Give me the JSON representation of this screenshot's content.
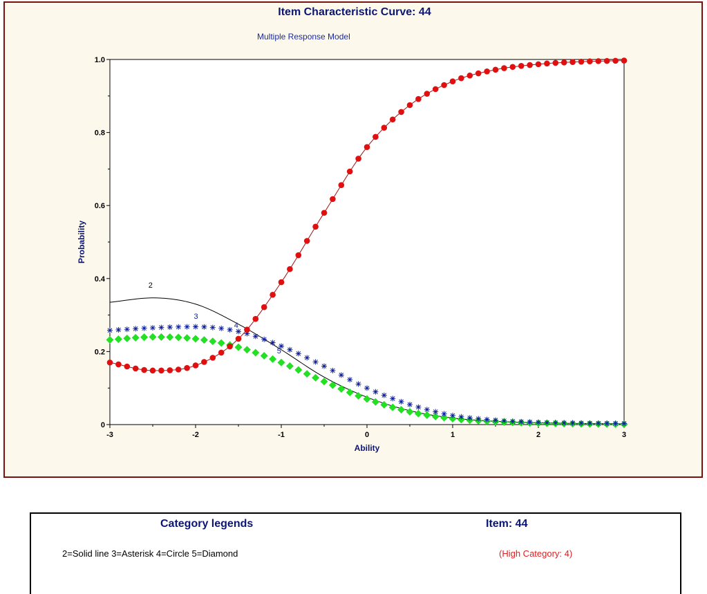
{
  "chart_data": {
    "type": "line",
    "title": "Item Characteristic Curve: 44",
    "subtitle": "Multiple Response Model",
    "xlabel": "Ability",
    "ylabel": "Probability",
    "xlim": [
      -3,
      3
    ],
    "ylim": [
      0,
      1
    ],
    "xticks": [
      "-3",
      "-2",
      "-1",
      "0",
      "1",
      "2",
      "3"
    ],
    "yticks": [
      "0",
      "0.2",
      "0.4",
      "0.6",
      "0.8",
      "1.0"
    ],
    "series": [
      {
        "name": "2",
        "marker": "line",
        "color": "#000000",
        "x": [
          -3.0,
          -2.5,
          -2.0,
          -1.5,
          -1.0,
          -0.5,
          0.0,
          0.5,
          1.0,
          1.5,
          2.0,
          2.5,
          3.0
        ],
        "values": [
          0.335,
          0.347,
          0.33,
          0.275,
          0.205,
          0.13,
          0.075,
          0.038,
          0.018,
          0.009,
          0.005,
          0.003,
          0.002
        ]
      },
      {
        "name": "3",
        "marker": "asterisk",
        "color": "#10209a",
        "x": [
          -3.0,
          -2.5,
          -2.0,
          -1.5,
          -1.0,
          -0.5,
          0.0,
          0.5,
          1.0,
          1.5,
          2.0,
          2.5,
          3.0
        ],
        "values": [
          0.258,
          0.265,
          0.268,
          0.255,
          0.215,
          0.16,
          0.1,
          0.055,
          0.025,
          0.012,
          0.006,
          0.004,
          0.003
        ]
      },
      {
        "name": "4",
        "marker": "circle",
        "color": "#e01010",
        "x": [
          -3.0,
          -2.5,
          -2.0,
          -1.5,
          -1.0,
          -0.5,
          0.0,
          0.5,
          1.0,
          1.5,
          2.0,
          2.5,
          3.0
        ],
        "values": [
          0.17,
          0.148,
          0.162,
          0.235,
          0.39,
          0.58,
          0.76,
          0.875,
          0.94,
          0.972,
          0.987,
          0.994,
          0.997
        ]
      },
      {
        "name": "5",
        "marker": "diamond",
        "color": "#22e022",
        "x": [
          -3.0,
          -2.5,
          -2.0,
          -1.5,
          -1.0,
          -0.5,
          0.0,
          0.5,
          1.0,
          1.5,
          2.0,
          2.5,
          3.0
        ],
        "values": [
          0.232,
          0.24,
          0.235,
          0.212,
          0.17,
          0.118,
          0.07,
          0.035,
          0.016,
          0.008,
          0.004,
          0.002,
          0.001
        ]
      }
    ],
    "grid": false
  },
  "legend": {
    "heading": "Category legends",
    "item_heading": "Item: 44",
    "description": "2=Solid line 3=Asterisk 4=Circle 5=Diamond",
    "high_category": "(High Category: 4)"
  }
}
